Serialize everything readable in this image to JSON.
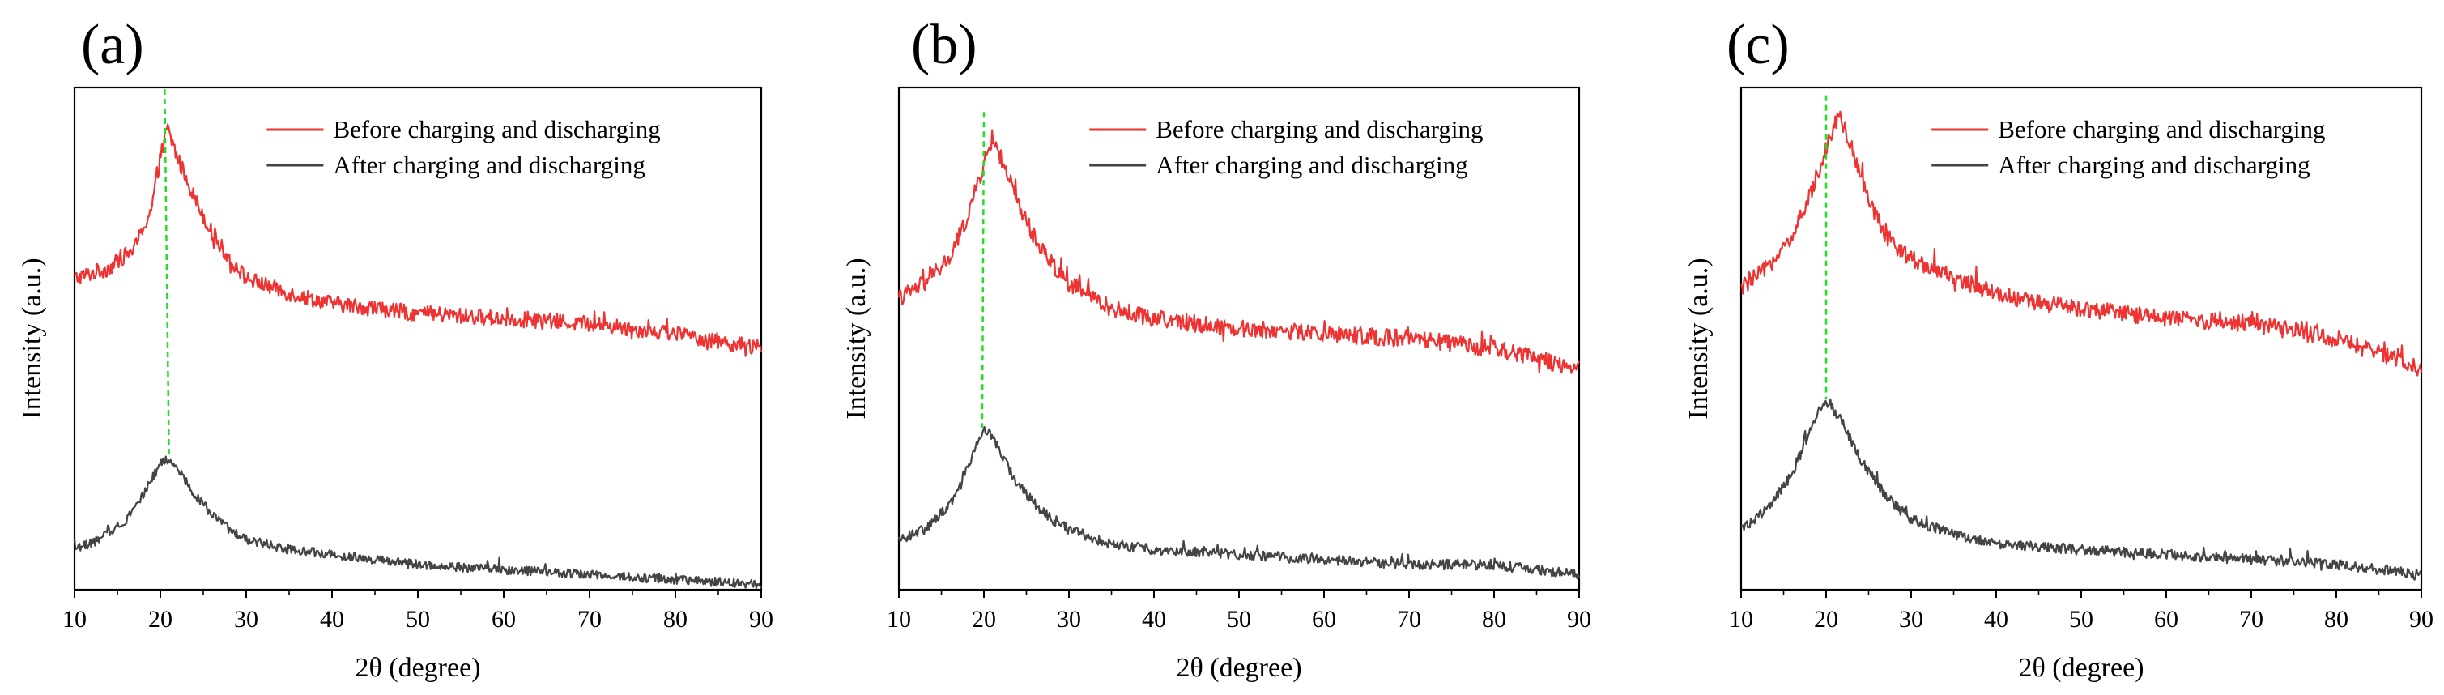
{
  "chart_data": [
    {
      "type": "line",
      "panel_label": "(a)",
      "xlabel": "2θ (degree)",
      "ylabel": "Intensity (a.u.)",
      "xlim": [
        10,
        90
      ],
      "xticks": [
        "10",
        "20",
        "30",
        "40",
        "50",
        "60",
        "70",
        "80",
        "90"
      ],
      "peak_marker": {
        "top_x": 20.5,
        "bottom_x": 21.0,
        "color": "#22dd22"
      },
      "series": [
        {
          "name": "Before charging and discharging",
          "color": "#ee3333",
          "x": [
            10,
            14,
            17,
            19,
            20,
            20.8,
            22,
            24,
            26,
            28,
            30,
            35,
            40,
            50,
            60,
            70,
            80,
            90
          ],
          "y": [
            0.62,
            0.64,
            0.68,
            0.76,
            0.86,
            0.92,
            0.86,
            0.78,
            0.71,
            0.66,
            0.62,
            0.59,
            0.57,
            0.55,
            0.54,
            0.53,
            0.51,
            0.48
          ],
          "noise": 0.016
        },
        {
          "name": "After charging and discharging",
          "color": "#444444",
          "x": [
            10,
            13,
            16,
            18,
            20,
            21,
            22,
            24,
            26,
            28,
            30,
            35,
            40,
            50,
            60,
            70,
            80,
            90
          ],
          "y": [
            0.08,
            0.1,
            0.14,
            0.19,
            0.25,
            0.26,
            0.24,
            0.19,
            0.15,
            0.12,
            0.1,
            0.08,
            0.07,
            0.05,
            0.04,
            0.03,
            0.02,
            0.01
          ],
          "noise": 0.009
        }
      ]
    },
    {
      "type": "line",
      "panel_label": "(b)",
      "xlabel": "2θ (degree)",
      "ylabel": "Intensity (a.u.)",
      "xlim": [
        10,
        90
      ],
      "xticks": [
        "10",
        "20",
        "30",
        "40",
        "50",
        "60",
        "70",
        "80",
        "90"
      ],
      "peak_marker": {
        "top_x": 20.0,
        "bottom_x": 19.8,
        "color": "#22dd22"
      },
      "series": [
        {
          "name": "Before charging and discharging",
          "color": "#ee3333",
          "x": [
            10,
            13,
            16,
            18,
            19.5,
            21,
            22,
            24,
            26,
            28,
            30,
            35,
            40,
            50,
            60,
            70,
            80,
            90
          ],
          "y": [
            0.58,
            0.61,
            0.66,
            0.74,
            0.82,
            0.9,
            0.86,
            0.77,
            0.7,
            0.65,
            0.61,
            0.56,
            0.54,
            0.52,
            0.51,
            0.5,
            0.48,
            0.44
          ],
          "noise": 0.017
        },
        {
          "name": "After charging and discharging",
          "color": "#444444",
          "x": [
            10,
            13,
            16,
            18,
            19.5,
            20.5,
            22,
            24,
            26,
            28,
            30,
            35,
            40,
            50,
            60,
            70,
            80,
            90
          ],
          "y": [
            0.1,
            0.12,
            0.17,
            0.24,
            0.31,
            0.32,
            0.27,
            0.21,
            0.17,
            0.14,
            0.12,
            0.09,
            0.08,
            0.07,
            0.06,
            0.05,
            0.05,
            0.03
          ],
          "noise": 0.01
        }
      ]
    },
    {
      "type": "line",
      "panel_label": "(c)",
      "xlabel": "2θ (degree)",
      "ylabel": "Intensity (a.u.)",
      "xlim": [
        10,
        90
      ],
      "xticks": [
        "10",
        "20",
        "30",
        "40",
        "50",
        "60",
        "70",
        "80",
        "90"
      ],
      "peak_marker": {
        "top_x": 20.0,
        "bottom_x": 20.0,
        "color": "#22dd22"
      },
      "series": [
        {
          "name": "Before charging and discharging",
          "color": "#ee3333",
          "x": [
            10,
            13,
            16,
            18,
            20,
            21.5,
            23,
            25,
            27,
            30,
            35,
            40,
            45,
            50,
            60,
            70,
            80,
            90
          ],
          "y": [
            0.6,
            0.64,
            0.7,
            0.78,
            0.88,
            0.95,
            0.88,
            0.78,
            0.7,
            0.66,
            0.62,
            0.59,
            0.57,
            0.56,
            0.54,
            0.53,
            0.5,
            0.44
          ],
          "noise": 0.017
        },
        {
          "name": "After charging and discharging",
          "color": "#444444",
          "x": [
            10,
            13,
            16,
            18,
            19.5,
            20.5,
            22,
            24,
            26,
            28,
            30,
            35,
            40,
            50,
            60,
            70,
            80,
            90
          ],
          "y": [
            0.12,
            0.16,
            0.23,
            0.31,
            0.37,
            0.37,
            0.33,
            0.26,
            0.21,
            0.17,
            0.14,
            0.11,
            0.09,
            0.08,
            0.07,
            0.06,
            0.05,
            0.03
          ],
          "noise": 0.01
        }
      ]
    }
  ]
}
